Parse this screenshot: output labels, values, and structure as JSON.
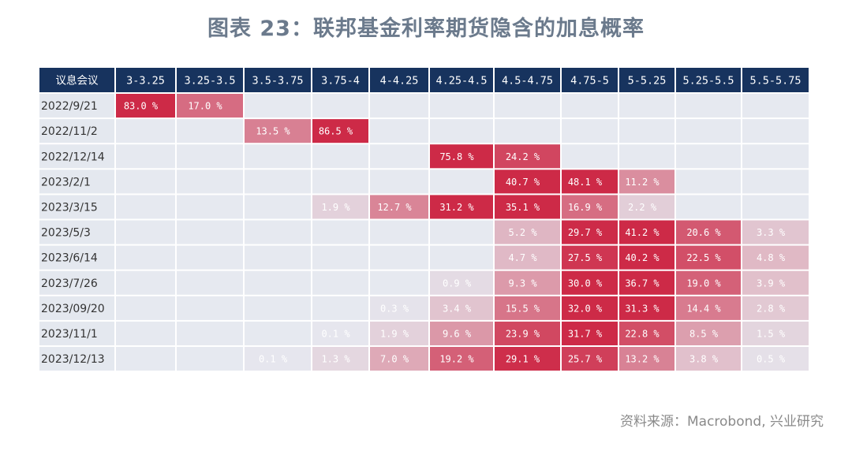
{
  "title": "图表 23：联邦基金利率期货隐含的加息概率",
  "source": "资料来源：Macrobond, 兴业研究",
  "colors": {
    "header_bg": "#17335e",
    "row_bg": "#e4e8ef",
    "cell_bg": "#e6e9f0",
    "hot": "#cd2a47",
    "title": "#6b7a8c"
  },
  "chart_data": {
    "type": "heatmap",
    "title": "图表 23：联邦基金利率期货隐含的加息概率",
    "corner_label": "议息会议",
    "columns": [
      "3-3.25",
      "3.25-3.5",
      "3.5-3.75",
      "3.75-4",
      "4-4.25",
      "4.25-4.5",
      "4.5-4.75",
      "4.75-5",
      "5-5.25",
      "5.25-5.5",
      "5.5-5.75"
    ],
    "rows": [
      {
        "label": "2022/9/21",
        "values": [
          83.0,
          17.0,
          null,
          null,
          null,
          null,
          null,
          null,
          null,
          null,
          null
        ]
      },
      {
        "label": "2022/11/2",
        "values": [
          null,
          null,
          13.5,
          86.5,
          null,
          null,
          null,
          null,
          null,
          null,
          null
        ]
      },
      {
        "label": "2022/12/14",
        "values": [
          null,
          null,
          null,
          null,
          null,
          75.8,
          24.2,
          null,
          null,
          null,
          null
        ]
      },
      {
        "label": "2023/2/1",
        "values": [
          null,
          null,
          null,
          null,
          null,
          null,
          40.7,
          48.1,
          11.2,
          null,
          null
        ]
      },
      {
        "label": "2023/3/15",
        "values": [
          null,
          null,
          null,
          1.9,
          12.7,
          31.2,
          35.1,
          16.9,
          2.2,
          null,
          null
        ]
      },
      {
        "label": "2023/5/3",
        "values": [
          null,
          null,
          null,
          null,
          null,
          null,
          5.2,
          29.7,
          41.2,
          20.6,
          3.3
        ]
      },
      {
        "label": "2023/6/14",
        "values": [
          null,
          null,
          null,
          null,
          null,
          null,
          4.7,
          27.5,
          40.2,
          22.5,
          4.8
        ]
      },
      {
        "label": "2023/7/26",
        "values": [
          null,
          null,
          null,
          null,
          null,
          0.9,
          9.3,
          30.0,
          36.7,
          19.0,
          3.9
        ]
      },
      {
        "label": "2023/09/20",
        "values": [
          null,
          null,
          null,
          null,
          0.3,
          3.4,
          15.5,
          32.0,
          31.3,
          14.4,
          2.8
        ]
      },
      {
        "label": "2023/11/1",
        "values": [
          null,
          null,
          null,
          0.1,
          1.9,
          9.6,
          23.9,
          31.7,
          22.8,
          8.5,
          1.5
        ]
      },
      {
        "label": "2023/12/13",
        "values": [
          null,
          null,
          0.1,
          1.3,
          7.0,
          19.2,
          29.1,
          25.7,
          13.2,
          3.8,
          0.5
        ]
      }
    ],
    "value_format": "{v} %",
    "value_decimals": 1
  }
}
